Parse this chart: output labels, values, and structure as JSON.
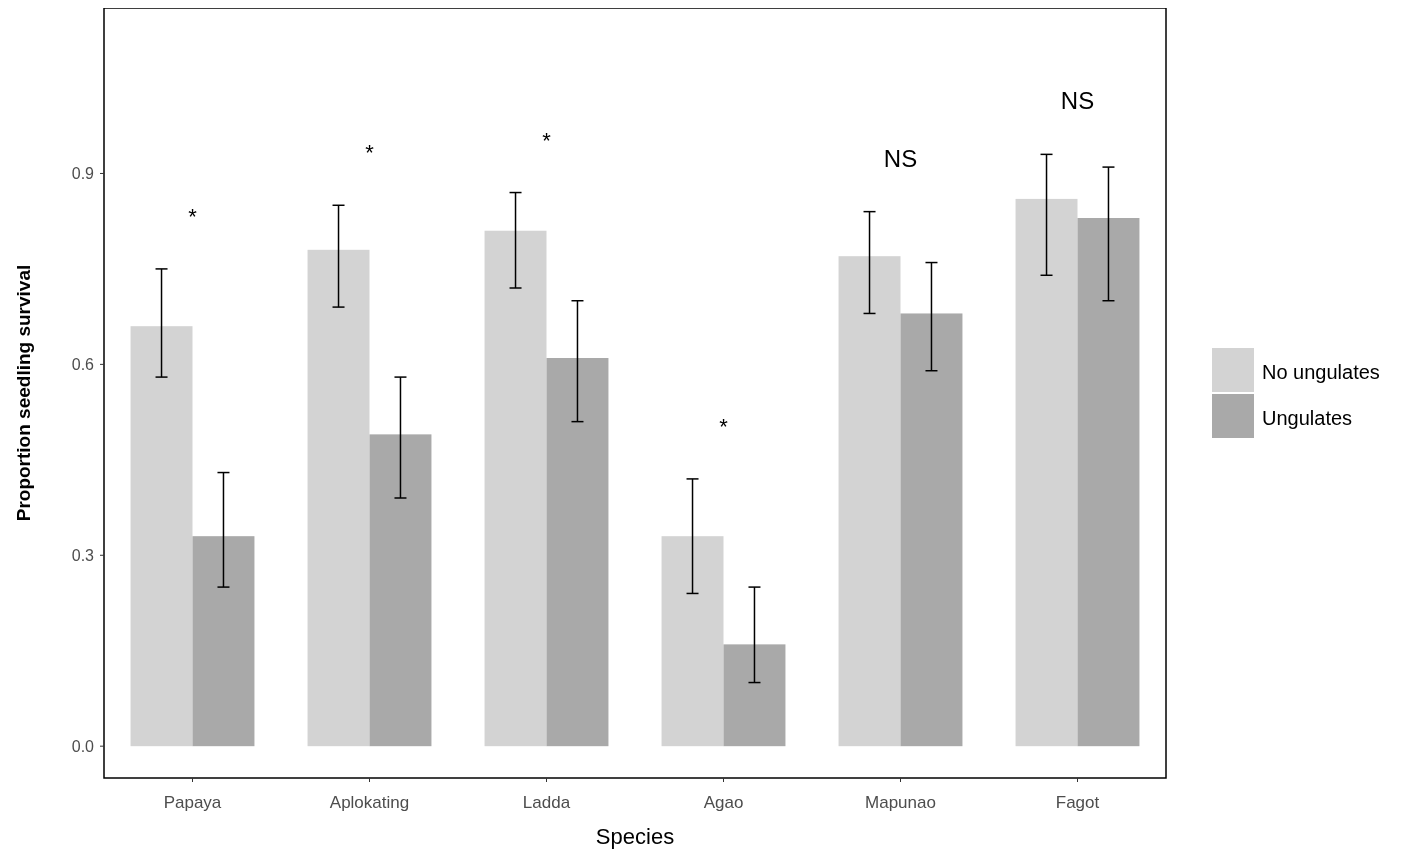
{
  "chart_data": {
    "type": "bar",
    "xlabel": "Species",
    "ylabel": "Proportion seedling survival",
    "categories": [
      "Papaya",
      "Aplokating",
      "Ladda",
      "Agao",
      "Mapunao",
      "Fagot"
    ],
    "series": [
      {
        "name": "No ungulates",
        "color": "#d3d3d3",
        "values": [
          0.66,
          0.78,
          0.81,
          0.33,
          0.77,
          0.86
        ],
        "errors": [
          [
            0.58,
            0.75
          ],
          [
            0.69,
            0.85
          ],
          [
            0.72,
            0.87
          ],
          [
            0.24,
            0.42
          ],
          [
            0.68,
            0.84
          ],
          [
            0.74,
            0.93
          ]
        ]
      },
      {
        "name": "Ungulates",
        "color": "#a9a9a9",
        "values": [
          0.33,
          0.49,
          0.61,
          0.16,
          0.68,
          0.83
        ],
        "errors": [
          [
            0.25,
            0.43
          ],
          [
            0.39,
            0.58
          ],
          [
            0.51,
            0.7
          ],
          [
            0.1,
            0.25
          ],
          [
            0.59,
            0.76
          ],
          [
            0.7,
            0.91
          ]
        ]
      }
    ],
    "ylim": [
      -0.05,
      1.16
    ],
    "yticks": [
      {
        "value": 0,
        "label": "0.0"
      },
      0.3,
      0.6,
      0.9
    ],
    "annotations": [
      "*",
      "*",
      "*",
      "*",
      "NS",
      "NS"
    ],
    "grid": false,
    "legend": "right"
  }
}
